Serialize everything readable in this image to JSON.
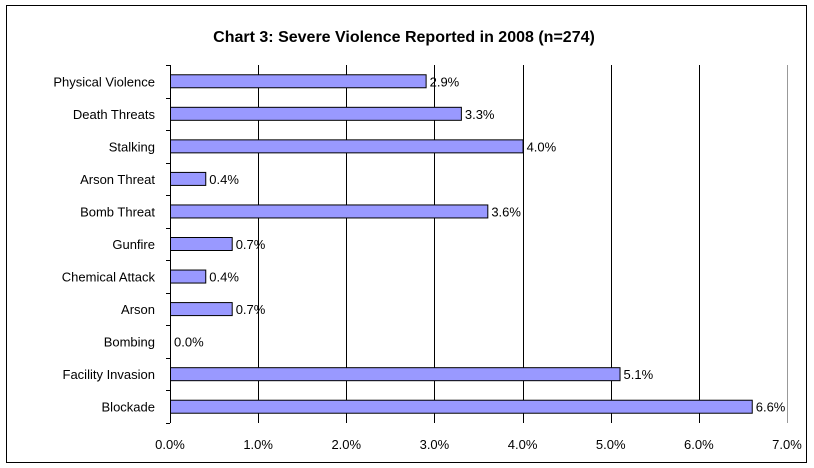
{
  "chart_data": {
    "type": "bar",
    "orientation": "horizontal",
    "title": "Chart 3: Severe Violence Reported in 2008 (n=274)",
    "categories": [
      "Physical Violence",
      "Death Threats",
      "Stalking",
      "Arson Threat",
      "Bomb Threat",
      "Gunfire",
      "Chemical Attack",
      "Arson",
      "Bombing",
      "Facility Invasion",
      "Blockade"
    ],
    "values": [
      2.9,
      3.3,
      4.0,
      0.4,
      3.6,
      0.7,
      0.4,
      0.7,
      0.0,
      5.1,
      6.6
    ],
    "value_labels": [
      "2.9%",
      "3.3%",
      "4.0%",
      "0.4%",
      "3.6%",
      "0.7%",
      "0.4%",
      "0.7%",
      "0.0%",
      "5.1%",
      "6.6%"
    ],
    "xlim": [
      0,
      7
    ],
    "x_ticks": [
      0,
      1,
      2,
      3,
      4,
      5,
      6,
      7
    ],
    "x_tick_labels": [
      "0.0%",
      "1.0%",
      "2.0%",
      "3.0%",
      "4.0%",
      "5.0%",
      "6.0%",
      "7.0%"
    ],
    "xlabel": "",
    "ylabel": "",
    "grid": "vertical",
    "legend": "none",
    "bar_color": "#9999ff",
    "bar_border_color": "#000000"
  }
}
